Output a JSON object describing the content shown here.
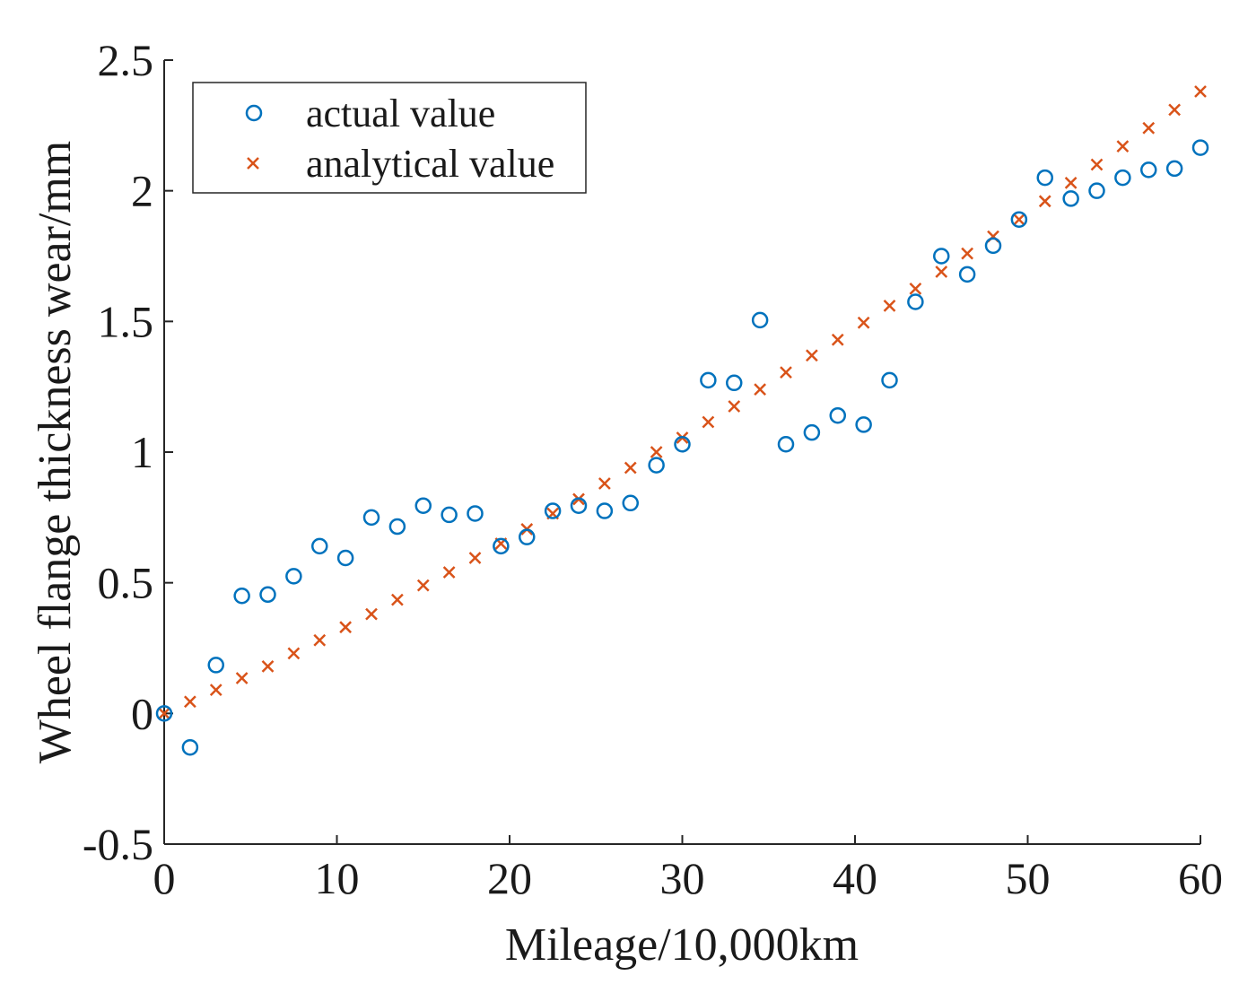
{
  "chart_data": {
    "type": "scatter",
    "xlabel": "Mileage/10,000km",
    "ylabel": "Wheel flange thickness wear/mm",
    "xlim": [
      0,
      60
    ],
    "ylim": [
      -0.5,
      2.5
    ],
    "xticks": [
      0,
      10,
      20,
      30,
      40,
      50,
      60
    ],
    "yticks": [
      -0.5,
      0,
      0.5,
      1,
      1.5,
      2,
      2.5
    ],
    "xtick_labels": [
      "0",
      "10",
      "20",
      "30",
      "40",
      "50",
      "60"
    ],
    "ytick_labels": [
      "-0.5",
      "0",
      "0.5",
      "1",
      "1.5",
      "2",
      "2.5"
    ],
    "grid": false,
    "legend_position": "top-left",
    "series": [
      {
        "name": "actual value",
        "marker": "circle",
        "color": "#0072BD",
        "x": [
          0,
          1.5,
          3,
          4.5,
          6,
          7.5,
          9,
          10.5,
          12,
          13.5,
          15,
          16.5,
          18,
          19.5,
          21,
          22.5,
          24,
          25.5,
          27,
          28.5,
          30,
          31.5,
          33,
          34.5,
          36,
          37.5,
          39,
          40.5,
          42,
          43.5,
          45,
          46.5,
          48,
          49.5,
          51,
          52.5,
          54,
          55.5,
          57,
          58.5,
          60
        ],
        "y": [
          0,
          -0.13,
          0.185,
          0.45,
          0.455,
          0.525,
          0.64,
          0.595,
          0.75,
          0.715,
          0.795,
          0.76,
          0.765,
          0.64,
          0.675,
          0.775,
          0.795,
          0.775,
          0.805,
          0.95,
          1.03,
          1.275,
          1.265,
          1.505,
          1.03,
          1.075,
          1.14,
          1.105,
          1.275,
          1.575,
          1.75,
          1.68,
          1.79,
          1.89,
          2.05,
          1.97,
          2.0,
          2.05,
          2.08,
          2.085,
          2.165
        ]
      },
      {
        "name": "analytical value",
        "marker": "x",
        "color": "#D95319",
        "x": [
          0,
          1.5,
          3,
          4.5,
          6,
          7.5,
          9,
          10.5,
          12,
          13.5,
          15,
          16.5,
          18,
          19.5,
          21,
          22.5,
          24,
          25.5,
          27,
          28.5,
          30,
          31.5,
          33,
          34.5,
          36,
          37.5,
          39,
          40.5,
          42,
          43.5,
          45,
          46.5,
          48,
          49.5,
          51,
          52.5,
          54,
          55.5,
          57,
          58.5,
          60
        ],
        "y": [
          0,
          0.045,
          0.09,
          0.135,
          0.18,
          0.23,
          0.28,
          0.33,
          0.38,
          0.435,
          0.49,
          0.54,
          0.595,
          0.65,
          0.705,
          0.765,
          0.82,
          0.88,
          0.94,
          1.0,
          1.055,
          1.115,
          1.175,
          1.24,
          1.305,
          1.37,
          1.43,
          1.495,
          1.56,
          1.625,
          1.69,
          1.76,
          1.825,
          1.89,
          1.96,
          2.03,
          2.1,
          2.17,
          2.24,
          2.31,
          2.38
        ]
      }
    ]
  }
}
